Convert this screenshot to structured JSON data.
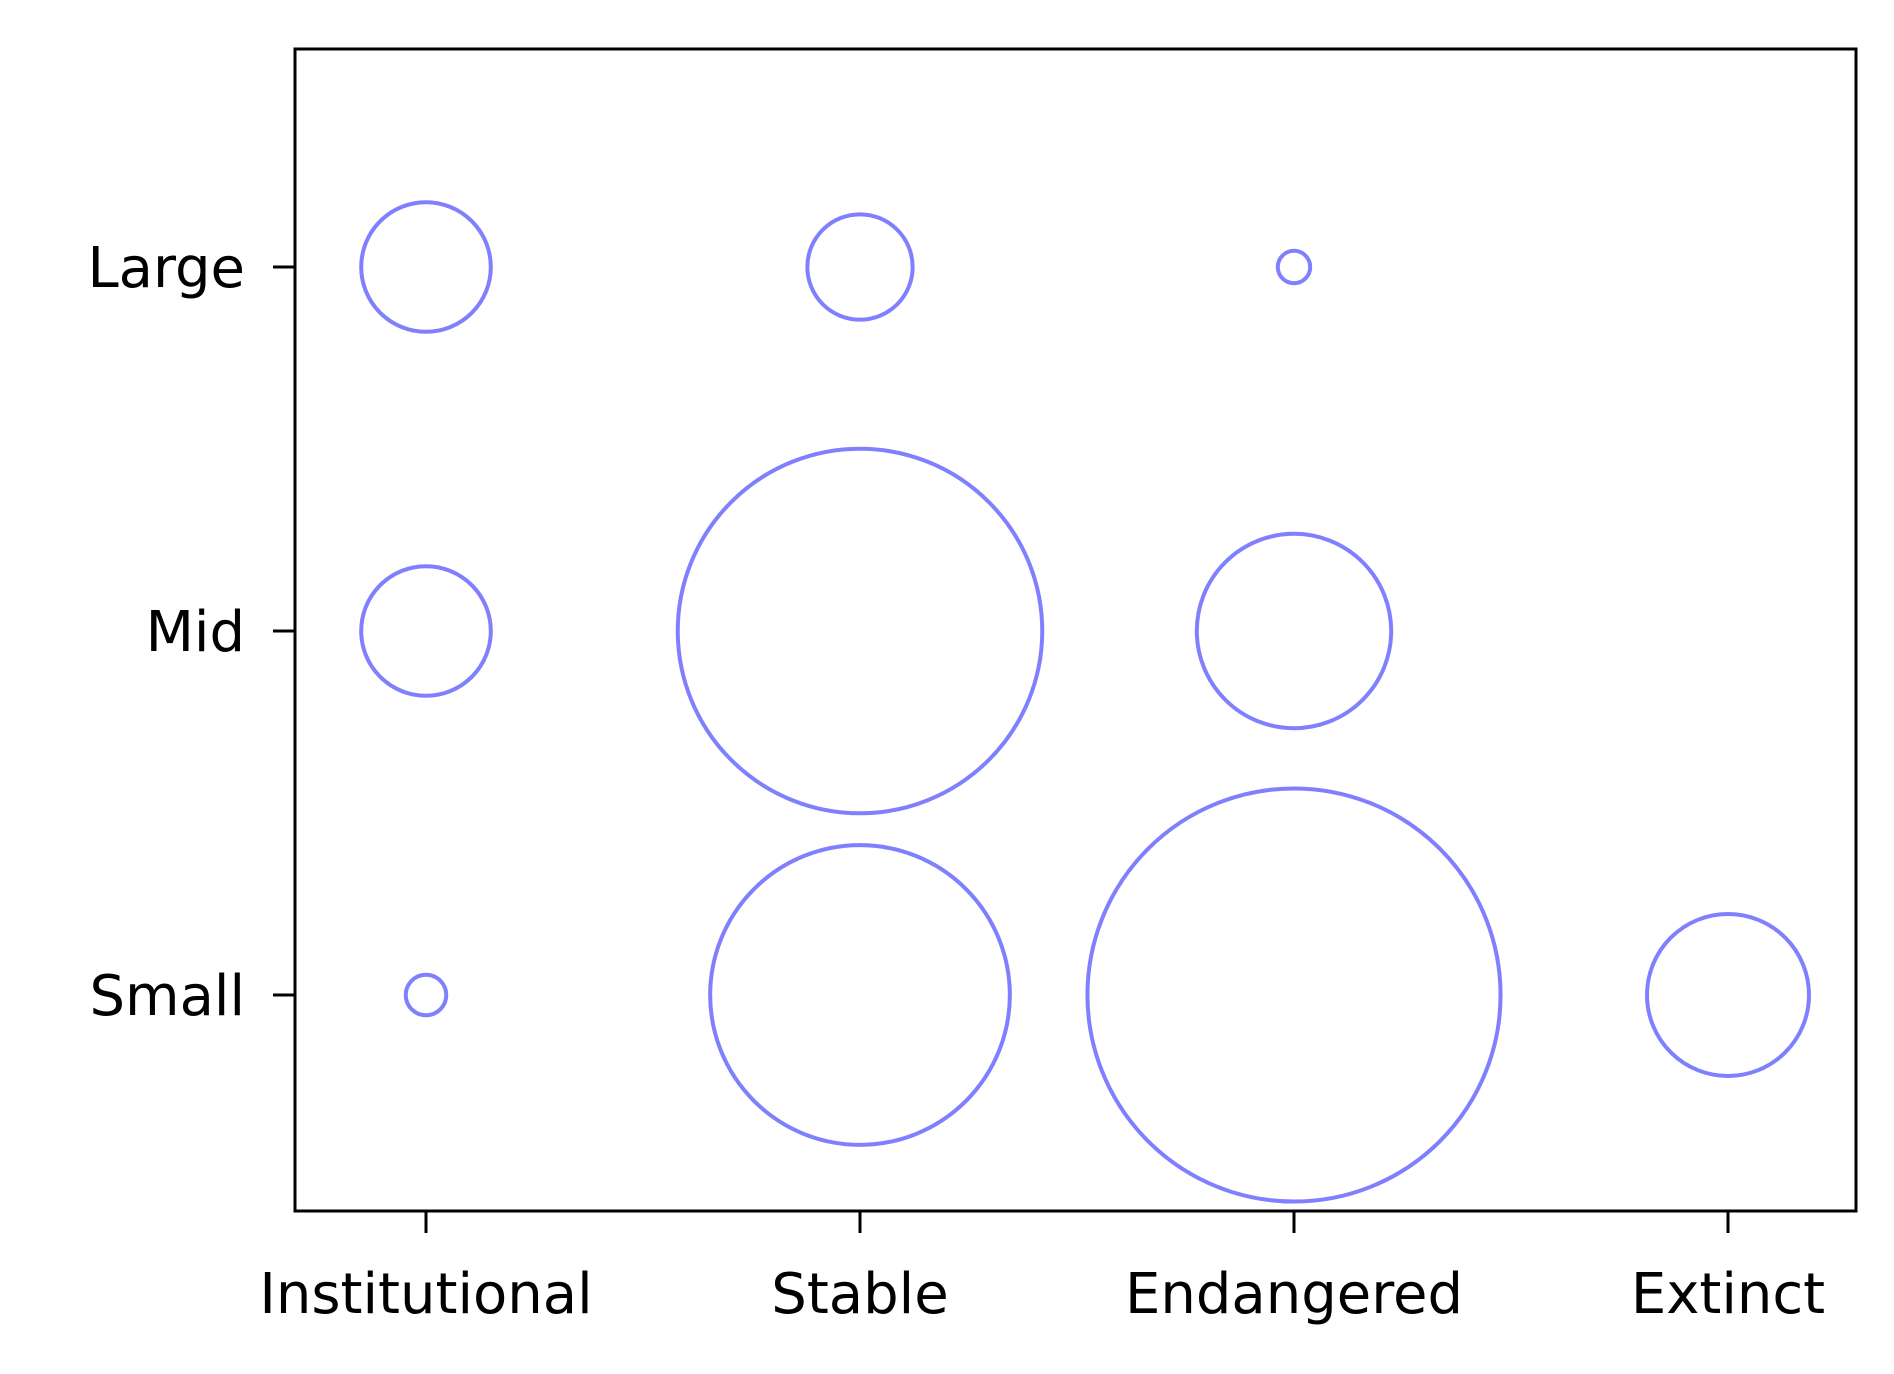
{
  "chart_data": {
    "type": "scatter",
    "title": "",
    "xlabel": "",
    "ylabel": "",
    "x_categories": [
      "Institutional",
      "Stable",
      "Endangered",
      "Extinct"
    ],
    "y_categories": [
      "Small",
      "Mid",
      "Large"
    ],
    "bubbles": [
      {
        "x": "Institutional",
        "y": "Large",
        "size": 8
      },
      {
        "x": "Institutional",
        "y": "Mid",
        "size": 8
      },
      {
        "x": "Institutional",
        "y": "Small",
        "size": 2.5
      },
      {
        "x": "Stable",
        "y": "Large",
        "size": 6.5
      },
      {
        "x": "Stable",
        "y": "Mid",
        "size": 22.5
      },
      {
        "x": "Stable",
        "y": "Small",
        "size": 18.5
      },
      {
        "x": "Endangered",
        "y": "Large",
        "size": 2
      },
      {
        "x": "Endangered",
        "y": "Mid",
        "size": 12
      },
      {
        "x": "Endangered",
        "y": "Small",
        "size": 25.5
      },
      {
        "x": "Extinct",
        "y": "Small",
        "size": 10
      }
    ],
    "marker": {
      "fill": "none",
      "stroke": "#8080ff"
    },
    "grid": false,
    "legend": "none"
  }
}
